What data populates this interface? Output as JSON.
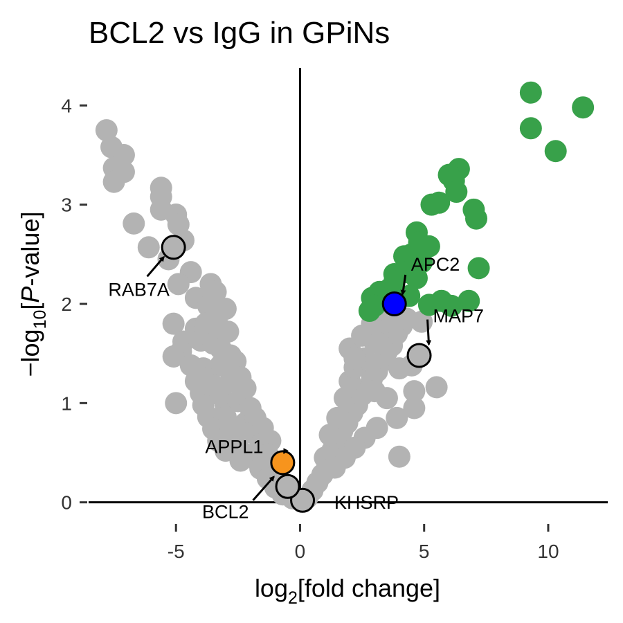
{
  "colors": {
    "background": "#ffffff",
    "non_significant": "#b3b3b3",
    "significant": "#38a14a",
    "highlight_blue": "#0000ff",
    "highlight_orange": "#f7941d",
    "axis": "#000000"
  },
  "chart_data": {
    "type": "scatter",
    "title": "BCL2 vs IgG in GPiNs",
    "xlabel": {
      "prefix": "log",
      "sub": "2",
      "suffix": "[fold change]"
    },
    "ylabel": {
      "prefix": "−log",
      "sub": "10",
      "mid": "[",
      "italic": "P",
      "suffix": "-value]"
    },
    "xlim": [
      -8.8,
      12.4
    ],
    "ylim": [
      -0.1,
      4.4
    ],
    "x_ticks": [
      -5,
      0,
      5,
      10
    ],
    "x_tick_labels": [
      "-5",
      "0",
      "5",
      "10"
    ],
    "y_ticks": [
      0,
      1,
      2,
      3,
      4
    ],
    "y_tick_labels": [
      "0",
      "1",
      "2",
      "3",
      "4"
    ],
    "grid": false,
    "series": [
      {
        "key": "non_significant",
        "color": "#b3b3b3",
        "points": [
          [
            -7.8,
            3.75
          ],
          [
            -7.6,
            3.58
          ],
          [
            -7.1,
            3.5
          ],
          [
            -7.5,
            3.37
          ],
          [
            -7.1,
            3.33
          ],
          [
            -7.5,
            3.23
          ],
          [
            -5.6,
            3.17
          ],
          [
            -5.6,
            3.08
          ],
          [
            -5.0,
            2.9
          ],
          [
            -5.6,
            2.95
          ],
          [
            -4.9,
            2.8
          ],
          [
            -6.7,
            2.81
          ],
          [
            -6.1,
            2.57
          ],
          [
            -4.7,
            2.64
          ],
          [
            -5.3,
            2.45
          ],
          [
            -4.4,
            2.32
          ],
          [
            -4.9,
            2.2
          ],
          [
            -3.6,
            2.2
          ],
          [
            -3.4,
            2.12
          ],
          [
            -4.2,
            2.06
          ],
          [
            -3.7,
            1.98
          ],
          [
            -3.4,
            1.92
          ],
          [
            -3.0,
            1.95
          ],
          [
            -5.1,
            1.8
          ],
          [
            -4.2,
            1.75
          ],
          [
            -3.8,
            1.8
          ],
          [
            -3.3,
            1.78
          ],
          [
            -2.9,
            1.72
          ],
          [
            -4.7,
            1.62
          ],
          [
            -4.8,
            1.52
          ],
          [
            -4.0,
            1.63
          ],
          [
            -3.5,
            1.6
          ],
          [
            -3.2,
            1.55
          ],
          [
            -2.8,
            1.48
          ],
          [
            -5.1,
            1.47
          ],
          [
            -4.4,
            1.38
          ],
          [
            -3.9,
            1.35
          ],
          [
            -3.2,
            1.38
          ],
          [
            -2.6,
            1.42
          ],
          [
            -3.8,
            1.25
          ],
          [
            -4.2,
            1.22
          ],
          [
            -3.5,
            1.18
          ],
          [
            -2.8,
            1.22
          ],
          [
            -2.4,
            1.26
          ],
          [
            -4.0,
            1.1
          ],
          [
            -3.2,
            1.08
          ],
          [
            -2.2,
            1.15
          ],
          [
            -3.9,
            0.98
          ],
          [
            -3.0,
            0.98
          ],
          [
            -2.5,
            1.02
          ],
          [
            -3.7,
            0.86
          ],
          [
            -3.0,
            0.86
          ],
          [
            -2.0,
            0.95
          ],
          [
            -3.5,
            0.74
          ],
          [
            -2.8,
            0.74
          ],
          [
            -2.2,
            0.8
          ],
          [
            -1.8,
            0.85
          ],
          [
            -3.3,
            0.62
          ],
          [
            -2.6,
            0.64
          ],
          [
            -1.9,
            0.7
          ],
          [
            -1.5,
            0.75
          ],
          [
            -3.0,
            0.52
          ],
          [
            -2.4,
            0.52
          ],
          [
            -1.6,
            0.58
          ],
          [
            -1.2,
            0.62
          ],
          [
            -2.4,
            0.42
          ],
          [
            -1.8,
            0.44
          ],
          [
            -1.3,
            0.48
          ],
          [
            -1.6,
            0.34
          ],
          [
            -1.1,
            0.36
          ],
          [
            -1.3,
            0.24
          ],
          [
            -0.9,
            0.26
          ],
          [
            -1.0,
            0.15
          ],
          [
            -0.7,
            0.18
          ],
          [
            -0.7,
            0.08
          ],
          [
            -0.4,
            0.1
          ],
          [
            -0.3,
            0.04
          ],
          [
            -5.0,
            1.0
          ],
          [
            0.3,
            0.05
          ],
          [
            0.5,
            0.12
          ],
          [
            0.7,
            0.2
          ],
          [
            0.9,
            0.28
          ],
          [
            1.1,
            0.36
          ],
          [
            1.0,
            0.45
          ],
          [
            1.3,
            0.52
          ],
          [
            1.5,
            0.6
          ],
          [
            1.2,
            0.68
          ],
          [
            1.7,
            0.72
          ],
          [
            1.9,
            0.8
          ],
          [
            1.5,
            0.85
          ],
          [
            2.1,
            0.9
          ],
          [
            2.3,
            0.98
          ],
          [
            1.8,
            1.05
          ],
          [
            2.5,
            1.08
          ],
          [
            2.7,
            1.15
          ],
          [
            2.0,
            1.22
          ],
          [
            2.9,
            1.25
          ],
          [
            3.1,
            1.32
          ],
          [
            2.2,
            1.36
          ],
          [
            3.3,
            1.42
          ],
          [
            2.6,
            1.45
          ],
          [
            3.5,
            1.52
          ],
          [
            2.0,
            1.55
          ],
          [
            3.7,
            1.58
          ],
          [
            3.0,
            1.62
          ],
          [
            2.5,
            1.68
          ],
          [
            3.9,
            1.7
          ],
          [
            3.3,
            1.75
          ],
          [
            4.1,
            1.78
          ],
          [
            3.6,
            1.82
          ],
          [
            2.9,
            1.8
          ],
          [
            4.3,
            1.85
          ],
          [
            3.0,
            1.92
          ],
          [
            3.8,
            1.9
          ],
          [
            4.9,
            1.82
          ],
          [
            3.4,
            1.45
          ],
          [
            4.0,
            1.35
          ],
          [
            4.5,
            1.38
          ],
          [
            3.0,
            1.12
          ],
          [
            3.5,
            1.05
          ],
          [
            3.9,
            0.85
          ],
          [
            3.1,
            0.75
          ],
          [
            2.6,
            0.65
          ],
          [
            2.2,
            0.55
          ],
          [
            1.8,
            0.45
          ],
          [
            1.4,
            0.35
          ],
          [
            4.6,
            1.12
          ],
          [
            5.5,
            1.16
          ],
          [
            4.6,
            0.95
          ],
          [
            4.0,
            0.46
          ],
          [
            3.2,
            1.6
          ],
          [
            2.2,
            1.45
          ]
        ]
      },
      {
        "key": "significant",
        "color": "#38a14a",
        "points": [
          [
            9.3,
            4.13
          ],
          [
            11.4,
            3.98
          ],
          [
            9.3,
            3.77
          ],
          [
            10.3,
            3.54
          ],
          [
            6.4,
            3.36
          ],
          [
            6.0,
            3.3
          ],
          [
            6.2,
            3.24
          ],
          [
            6.3,
            3.13
          ],
          [
            5.6,
            3.02
          ],
          [
            5.3,
            3.0
          ],
          [
            7.0,
            2.95
          ],
          [
            7.1,
            2.86
          ],
          [
            4.7,
            2.72
          ],
          [
            4.8,
            2.62
          ],
          [
            5.2,
            2.58
          ],
          [
            4.5,
            2.5
          ],
          [
            4.2,
            2.48
          ],
          [
            4.9,
            2.42
          ],
          [
            7.2,
            2.36
          ],
          [
            4.6,
            2.38
          ],
          [
            3.8,
            2.3
          ],
          [
            4.3,
            2.32
          ],
          [
            3.8,
            2.22
          ],
          [
            4.7,
            2.26
          ],
          [
            3.6,
            2.15
          ],
          [
            3.2,
            2.12
          ],
          [
            2.9,
            2.06
          ],
          [
            3.4,
            2.05
          ],
          [
            5.7,
            2.03
          ],
          [
            6.8,
            2.03
          ],
          [
            3.0,
            1.98
          ],
          [
            5.2,
            1.99
          ],
          [
            6.1,
            1.98
          ],
          [
            4.4,
            2.08
          ],
          [
            2.8,
            1.93
          ]
        ]
      }
    ],
    "highlighted_points": [
      {
        "label": "RAB7A",
        "x": -5.1,
        "y": 2.57,
        "fill": "#b3b3b3"
      },
      {
        "label": "APC2",
        "x": 3.8,
        "y": 2.0,
        "fill": "#0000ff"
      },
      {
        "label": "MAP7",
        "x": 4.8,
        "y": 1.48,
        "fill": "#b3b3b3"
      },
      {
        "label": "APPL1",
        "x": -0.7,
        "y": 0.4,
        "fill": "#f7941d"
      },
      {
        "label": "BCL2",
        "x": -0.5,
        "y": 0.16,
        "fill": "#b3b3b3"
      },
      {
        "label": "KHSRP",
        "x": 0.1,
        "y": 0.02,
        "fill": "#b3b3b3"
      }
    ]
  }
}
